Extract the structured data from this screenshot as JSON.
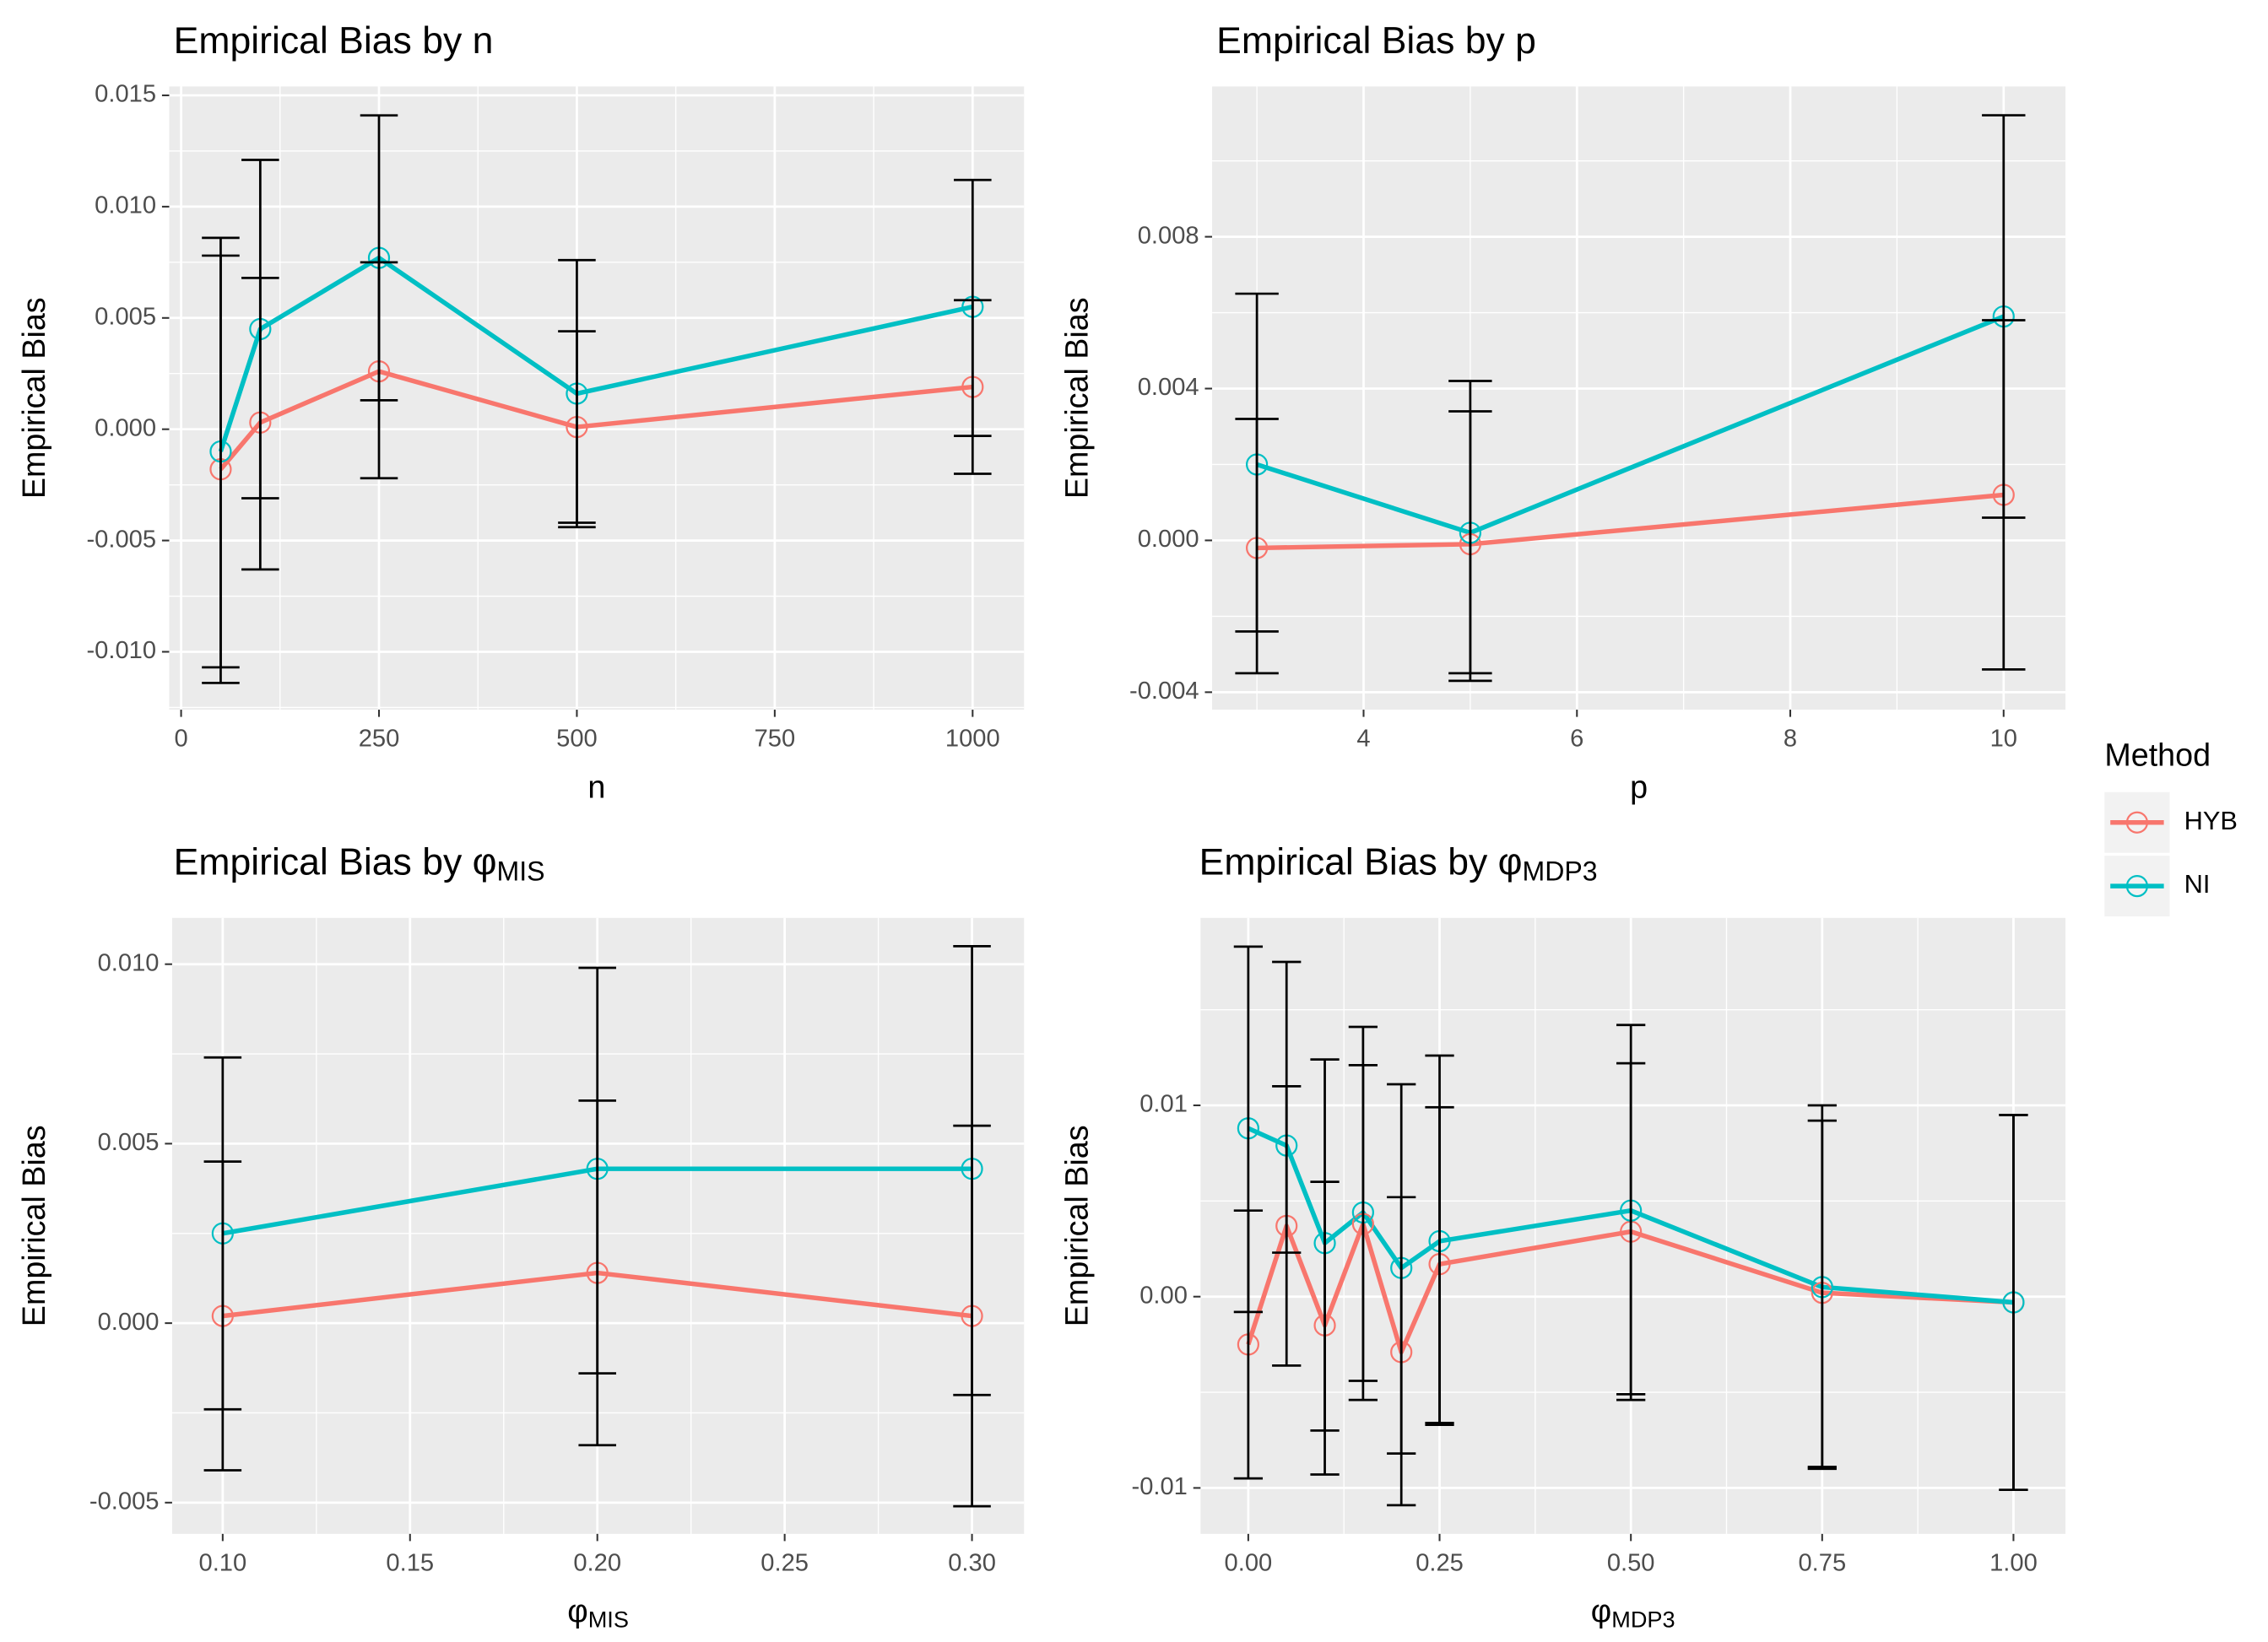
{
  "chart_data": [
    {
      "type": "line",
      "title": "Empirical Bias by n",
      "xlabel": "n",
      "ylabel": "Empirical Bias",
      "x": [
        50,
        100,
        250,
        500,
        1000
      ],
      "xlim": [
        -15,
        1065
      ],
      "xticks": [
        0,
        250,
        500,
        750,
        1000
      ],
      "ylim": [
        -0.0126,
        0.0154
      ],
      "yticks": [
        {
          "value": -0.01,
          "label": "-0.010"
        },
        {
          "value": -0.005,
          "label": "-0.005"
        },
        {
          "value": 0,
          "label": "0.000"
        },
        {
          "value": 0.005,
          "label": "0.005"
        },
        {
          "value": 0.01,
          "label": "0.010"
        },
        {
          "value": 0.015,
          "label": "0.015"
        }
      ],
      "grid": true,
      "series": [
        {
          "name": "HYB",
          "color": "#F8766D",
          "values": [
            -0.0018,
            0.0003,
            0.0026,
            0.0001,
            0.0019
          ],
          "lower": [
            -0.0114,
            -0.0063,
            -0.0022,
            -0.0042,
            -0.002
          ],
          "upper": [
            0.0078,
            0.0068,
            0.0075,
            0.0044,
            0.0058
          ]
        },
        {
          "name": "NI",
          "color": "#00BFC4",
          "values": [
            -0.001,
            0.0045,
            0.0077,
            0.0016,
            0.0055
          ],
          "lower": [
            -0.0107,
            -0.0031,
            0.0013,
            -0.0044,
            -0.0003
          ],
          "upper": [
            0.0086,
            0.0121,
            0.0141,
            0.0076,
            0.0112
          ]
        }
      ]
    },
    {
      "type": "line",
      "title": "Empirical Bias by p",
      "xlabel": "p",
      "ylabel": "Empirical Bias",
      "x": [
        3,
        5,
        10
      ],
      "xlim": [
        2.58,
        10.58
      ],
      "xticks": [
        4,
        6,
        8,
        10
      ],
      "ylim": [
        -0.00446,
        0.01196
      ],
      "yticks": [
        {
          "value": -0.004,
          "label": "-0.004"
        },
        {
          "value": 0,
          "label": "0.000"
        },
        {
          "value": 0.004,
          "label": "0.004"
        },
        {
          "value": 0.008,
          "label": "0.008"
        }
      ],
      "grid": true,
      "series": [
        {
          "name": "HYB",
          "color": "#F8766D",
          "values": [
            -0.0002,
            -0.0001,
            0.0012
          ],
          "lower": [
            -0.0035,
            -0.0035,
            -0.0034
          ],
          "upper": [
            0.0032,
            0.0034,
            0.0058
          ]
        },
        {
          "name": "NI",
          "color": "#00BFC4",
          "values": [
            0.002,
            0.0002,
            0.0059
          ],
          "lower": [
            -0.0024,
            -0.0037,
            0.0006
          ],
          "upper": [
            0.0065,
            0.0042,
            0.0112
          ]
        }
      ]
    },
    {
      "type": "line",
      "title": "Empirical Bias by φ",
      "title_subscript": "MIS",
      "xlabel": "φ",
      "xlabel_subscript": "MIS",
      "ylabel": "Empirical Bias",
      "x": [
        0.1,
        0.2,
        0.3
      ],
      "xlim": [
        0.0865,
        0.3139
      ],
      "xticks": [
        {
          "value": 0.1,
          "label": "0.10"
        },
        0.15,
        {
          "value": 0.2,
          "label": "0.20"
        },
        0.25,
        {
          "value": 0.3,
          "label": "0.30"
        }
      ],
      "ylim": [
        -0.00587,
        0.01129
      ],
      "yticks": [
        {
          "value": -0.005,
          "label": "-0.005"
        },
        {
          "value": 0,
          "label": "0.000"
        },
        {
          "value": 0.005,
          "label": "0.005"
        },
        {
          "value": 0.01,
          "label": "0.010"
        }
      ],
      "grid": true,
      "series": [
        {
          "name": "HYB",
          "color": "#F8766D",
          "values": [
            0.0002,
            0.0014,
            0.0002
          ],
          "lower": [
            -0.0041,
            -0.0034,
            -0.0051
          ],
          "upper": [
            0.0045,
            0.0062,
            0.0055
          ]
        },
        {
          "name": "NI",
          "color": "#00BFC4",
          "values": [
            0.0025,
            0.0043,
            0.0043
          ],
          "lower": [
            -0.0024,
            -0.0014,
            -0.002
          ],
          "upper": [
            0.0074,
            0.0099,
            0.0105
          ]
        }
      ]
    },
    {
      "type": "line",
      "title": "Empirical Bias by φ",
      "title_subscript": "MDP3",
      "xlabel": "φ",
      "xlabel_subscript": "MDP3",
      "ylabel": "Empirical Bias",
      "x": [
        0,
        0.05,
        0.1,
        0.15,
        0.2,
        0.25,
        0.5,
        0.75,
        1
      ],
      "xlim": [
        -0.0624,
        1.068
      ],
      "xticks": [
        {
          "value": 0,
          "label": "0.00"
        },
        0.25,
        {
          "value": 0.5,
          "label": "0.50"
        },
        0.75,
        {
          "value": 1,
          "label": "1.00"
        }
      ],
      "ylim": [
        -0.0124,
        0.0198
      ],
      "yticks": [
        -0.01,
        {
          "value": 0,
          "label": "0.00"
        },
        0.01
      ],
      "grid": true,
      "series": [
        {
          "name": "HYB",
          "color": "#F8766D",
          "values": [
            -0.0025,
            0.0037,
            -0.0015,
            0.0038,
            -0.0029,
            0.0017,
            0.0034,
            0.0002,
            -0.0003
          ],
          "lower": [
            -0.0095,
            -0.0036,
            -0.0093,
            -0.0044,
            -0.0109,
            -0.0066,
            -0.0054,
            -0.009,
            -0.0101
          ],
          "upper": [
            0.0045,
            0.011,
            0.006,
            0.0121,
            0.0052,
            0.0099,
            0.0122,
            0.0092,
            0.0095
          ]
        },
        {
          "name": "NI",
          "color": "#00BFC4",
          "values": [
            0.0088,
            0.0079,
            0.0028,
            0.0044,
            0.0015,
            0.0029,
            0.0045,
            0.0005,
            -0.0003
          ],
          "lower": [
            -0.0008,
            0.0023,
            -0.007,
            -0.0054,
            -0.0082,
            -0.0067,
            -0.0051,
            -0.0089,
            -0.0101
          ],
          "upper": [
            0.0183,
            0.0175,
            0.0124,
            0.0141,
            0.0111,
            0.0126,
            0.0142,
            0.01,
            0.0095
          ]
        }
      ]
    }
  ],
  "legend": {
    "title": "Method",
    "position": "right"
  }
}
